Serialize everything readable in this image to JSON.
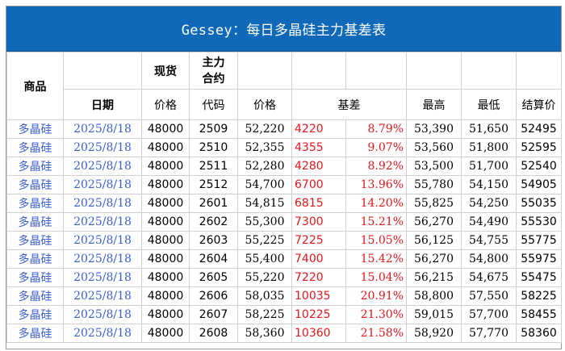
{
  "title": "Gessey：每日多晶硅主力基差表",
  "headers": {
    "product": "商品",
    "spot": "现货",
    "main_contract": "主力\n合约",
    "date": "日期",
    "price": "价格",
    "code": "代码",
    "futures_price": "价格",
    "basis": "基差",
    "high": "最高",
    "low": "最低",
    "settle": "结算价"
  },
  "rows": [
    {
      "product": "多晶硅",
      "date": "2025/8/18",
      "spot": "48000",
      "code": "2509",
      "price": "52,220",
      "basis": "4220",
      "basis_pct": "8.79%",
      "high": "53,390",
      "low": "51,650",
      "settle": "52495"
    },
    {
      "product": "多晶硅",
      "date": "2025/8/18",
      "spot": "48000",
      "code": "2510",
      "price": "52,355",
      "basis": "4355",
      "basis_pct": "9.07%",
      "high": "53,560",
      "low": "51,800",
      "settle": "52595"
    },
    {
      "product": "多晶硅",
      "date": "2025/8/18",
      "spot": "48000",
      "code": "2511",
      "price": "52,280",
      "basis": "4280",
      "basis_pct": "8.92%",
      "high": "53,500",
      "low": "51,700",
      "settle": "52540"
    },
    {
      "product": "多晶硅",
      "date": "2025/8/18",
      "spot": "48000",
      "code": "2512",
      "price": "54,700",
      "basis": "6700",
      "basis_pct": "13.96%",
      "high": "55,780",
      "low": "54,150",
      "settle": "54905"
    },
    {
      "product": "多晶硅",
      "date": "2025/8/18",
      "spot": "48000",
      "code": "2601",
      "price": "54,815",
      "basis": "6815",
      "basis_pct": "14.20%",
      "high": "55,825",
      "low": "54,250",
      "settle": "55035"
    },
    {
      "product": "多晶硅",
      "date": "2025/8/18",
      "spot": "48000",
      "code": "2602",
      "price": "55,300",
      "basis": "7300",
      "basis_pct": "15.21%",
      "high": "56,270",
      "low": "54,490",
      "settle": "55530"
    },
    {
      "product": "多晶硅",
      "date": "2025/8/18",
      "spot": "48000",
      "code": "2603",
      "price": "55,225",
      "basis": "7225",
      "basis_pct": "15.05%",
      "high": "56,125",
      "low": "54,755",
      "settle": "55775"
    },
    {
      "product": "多晶硅",
      "date": "2025/8/18",
      "spot": "48000",
      "code": "2604",
      "price": "55,400",
      "basis": "7400",
      "basis_pct": "15.42%",
      "high": "56,270",
      "low": "54,800",
      "settle": "55975"
    },
    {
      "product": "多晶硅",
      "date": "2025/8/18",
      "spot": "48000",
      "code": "2605",
      "price": "55,220",
      "basis": "7220",
      "basis_pct": "15.04%",
      "high": "56,215",
      "low": "54,675",
      "settle": "55475"
    },
    {
      "product": "多晶硅",
      "date": "2025/8/18",
      "spot": "48000",
      "code": "2606",
      "price": "58,035",
      "basis": "10035",
      "basis_pct": "20.91%",
      "high": "58,800",
      "low": "57,550",
      "settle": "58225"
    },
    {
      "product": "多晶硅",
      "date": "2025/8/18",
      "spot": "48000",
      "code": "2607",
      "price": "58,225",
      "basis": "10225",
      "basis_pct": "21.30%",
      "high": "59,015",
      "low": "57,700",
      "settle": "58455"
    },
    {
      "product": "多晶硅",
      "date": "2025/8/18",
      "spot": "48000",
      "code": "2608",
      "price": "58,360",
      "basis": "10360",
      "basis_pct": "21.58%",
      "high": "58,920",
      "low": "57,770",
      "settle": "58360"
    }
  ],
  "colors": {
    "title_bg": "#0f68b8",
    "title_text": "#ffffff",
    "link_blue": "#3a5fd0",
    "basis_red": "#e4171b",
    "grid": "#cfcfcf"
  }
}
